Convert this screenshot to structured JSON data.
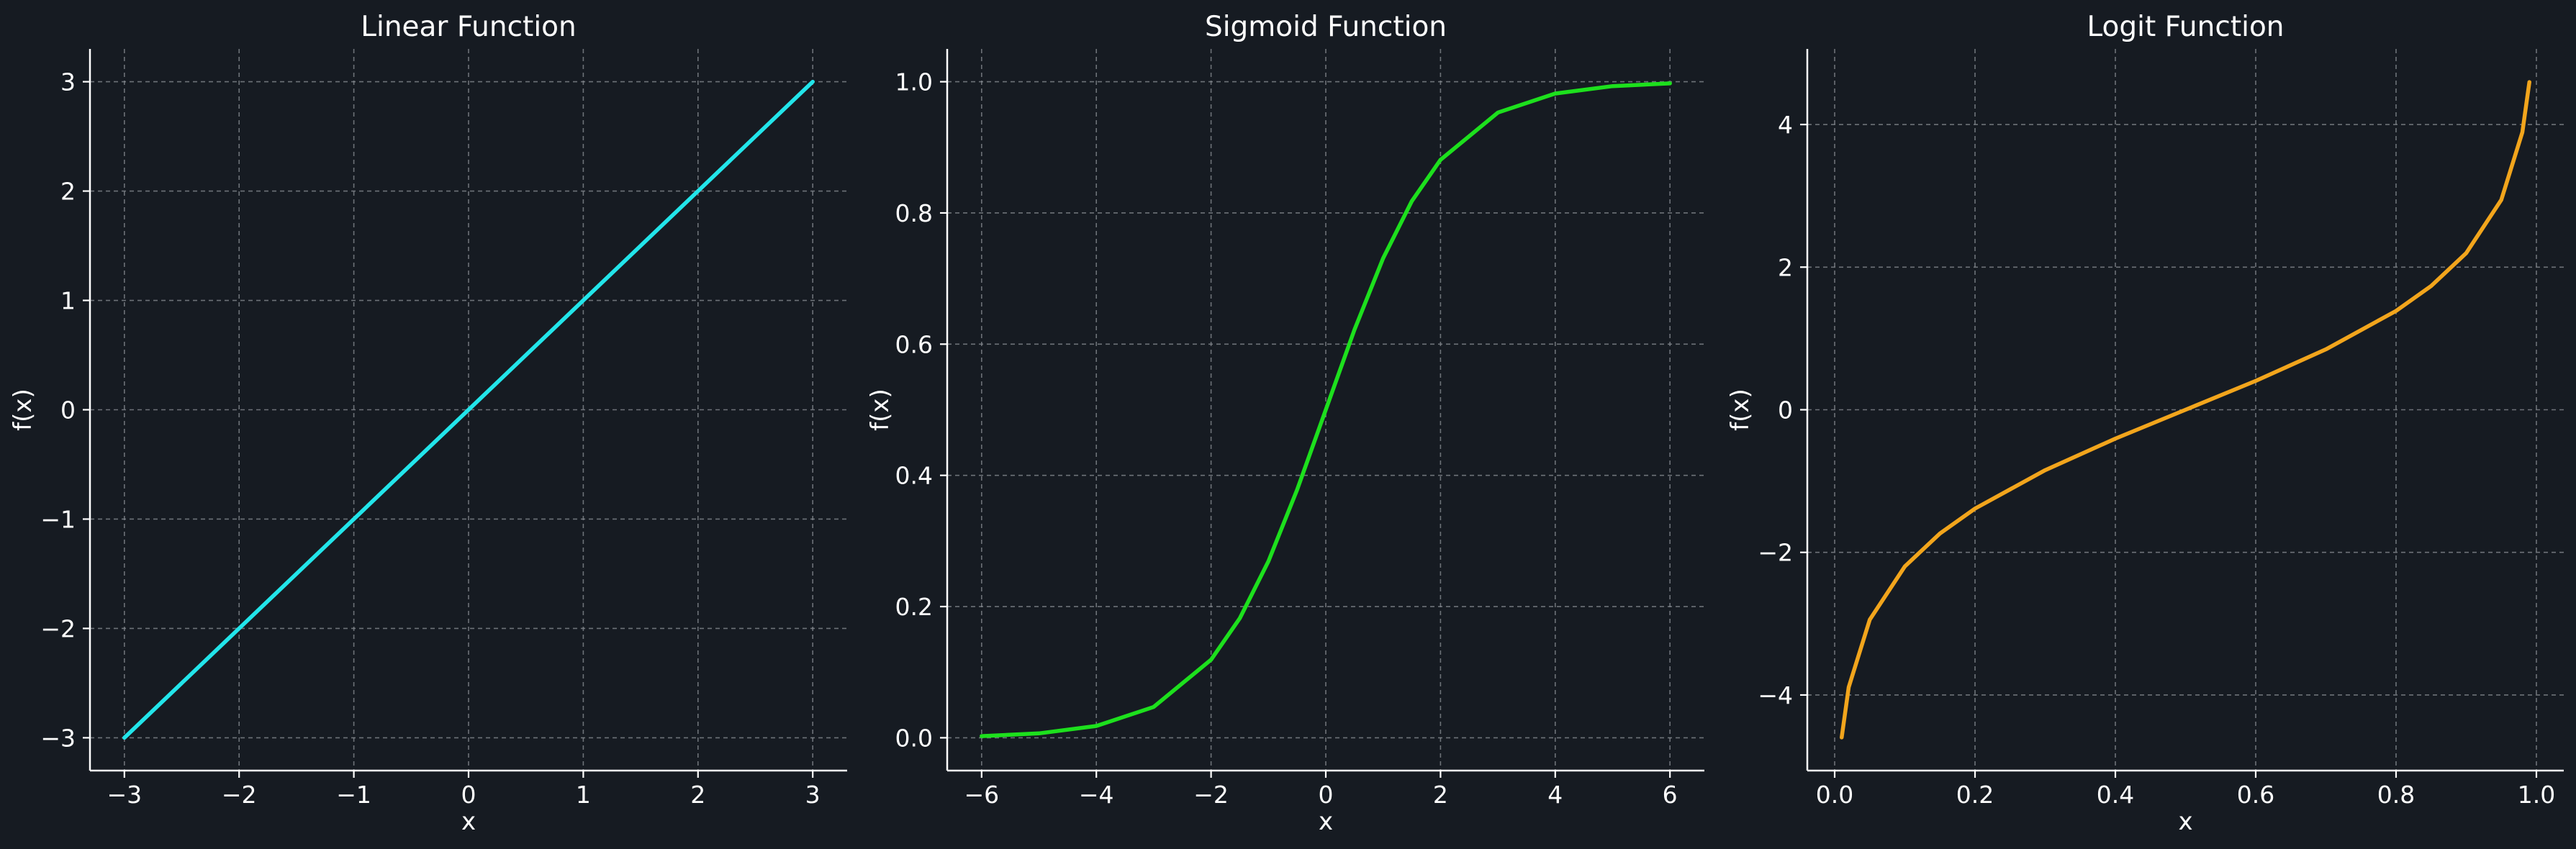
{
  "chart_data": [
    {
      "type": "line",
      "title": "Linear Function",
      "xlabel": "x",
      "ylabel": "f(x)",
      "function": "f(x) = x",
      "xlim": [
        -3.3,
        3.3
      ],
      "ylim": [
        -3.3,
        3.3
      ],
      "x_ticks": [
        -3,
        -2,
        -1,
        0,
        1,
        2,
        3
      ],
      "x_tick_labels": [
        "−3",
        "−2",
        "−1",
        "0",
        "1",
        "2",
        "3"
      ],
      "y_ticks": [
        -3,
        -2,
        -1,
        0,
        1,
        2,
        3
      ],
      "y_tick_labels": [
        "−3",
        "−2",
        "−1",
        "0",
        "1",
        "2",
        "3"
      ],
      "grid": true,
      "series": [
        {
          "color": "#22e5ea",
          "x": [
            -3,
            -2,
            -1,
            0,
            1,
            2,
            3
          ],
          "y": [
            -3,
            -2,
            -1,
            0,
            1,
            2,
            3
          ]
        }
      ]
    },
    {
      "type": "line",
      "title": "Sigmoid Function",
      "xlabel": "x",
      "ylabel": "f(x)",
      "function": "f(x) = 1 / (1 + e^(-x))",
      "xlim": [
        -6.6,
        6.6
      ],
      "ylim": [
        -0.05,
        1.05
      ],
      "x_ticks": [
        -6,
        -4,
        -2,
        0,
        2,
        4,
        6
      ],
      "x_tick_labels": [
        "−6",
        "−4",
        "−2",
        "0",
        "2",
        "4",
        "6"
      ],
      "y_ticks": [
        0,
        0.2,
        0.4,
        0.6,
        0.8,
        1.0
      ],
      "y_tick_labels": [
        "0.0",
        "0.2",
        "0.4",
        "0.6",
        "0.8",
        "1.0"
      ],
      "grid": true,
      "series": [
        {
          "color": "#1de01d",
          "x": [
            -6,
            -5,
            -4,
            -3,
            -2,
            -1.5,
            -1,
            -0.5,
            0,
            0.5,
            1,
            1.5,
            2,
            3,
            4,
            5,
            6
          ],
          "y": [
            0.0025,
            0.0067,
            0.018,
            0.047,
            0.119,
            0.182,
            0.269,
            0.378,
            0.5,
            0.622,
            0.731,
            0.818,
            0.881,
            0.953,
            0.982,
            0.9933,
            0.9975
          ]
        }
      ]
    },
    {
      "type": "line",
      "title": "Logit Function",
      "xlabel": "x",
      "ylabel": "f(x)",
      "function": "f(x) = ln(x / (1 - x))",
      "xlim": [
        -0.039,
        1.039
      ],
      "ylim": [
        -5.06,
        5.06
      ],
      "x_ticks": [
        0,
        0.2,
        0.4,
        0.6,
        0.8,
        1.0
      ],
      "x_tick_labels": [
        "0.0",
        "0.2",
        "0.4",
        "0.6",
        "0.8",
        "1.0"
      ],
      "y_ticks": [
        -4,
        -2,
        0,
        2,
        4
      ],
      "y_tick_labels": [
        "−4",
        "−2",
        "0",
        "2",
        "4"
      ],
      "grid": true,
      "series": [
        {
          "color": "#f2a51c",
          "x": [
            0.01,
            0.02,
            0.05,
            0.1,
            0.15,
            0.2,
            0.3,
            0.4,
            0.5,
            0.6,
            0.7,
            0.8,
            0.85,
            0.9,
            0.95,
            0.98,
            0.99
          ],
          "y": [
            -4.595,
            -3.892,
            -2.944,
            -2.197,
            -1.735,
            -1.386,
            -0.847,
            -0.405,
            0,
            0.405,
            0.847,
            1.386,
            1.735,
            2.197,
            2.944,
            3.892,
            4.595
          ]
        }
      ]
    }
  ]
}
